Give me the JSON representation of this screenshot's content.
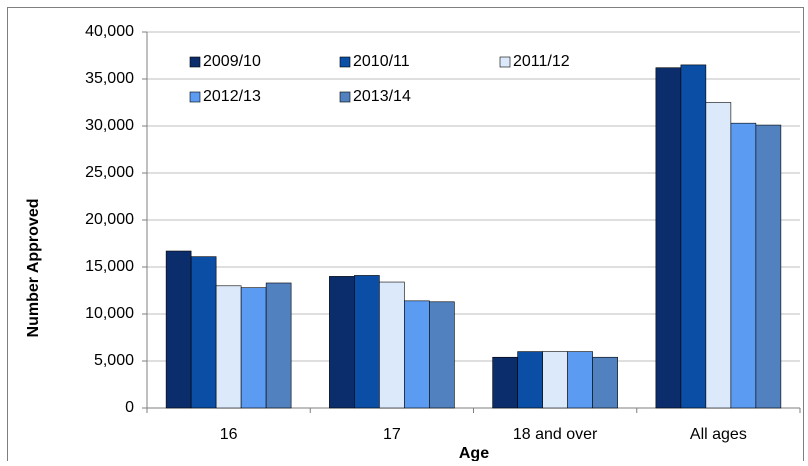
{
  "chart_data": {
    "type": "bar",
    "x_label": "Age",
    "y_label": "Number Approved",
    "categories": [
      "16",
      "17",
      "18 and over",
      "All ages"
    ],
    "series": [
      {
        "name": "2009/10",
        "color": "#0c2d6b",
        "values": [
          16700,
          14000,
          5400,
          36200
        ]
      },
      {
        "name": "2010/11",
        "color": "#0a4ea6",
        "values": [
          16100,
          14100,
          6000,
          36500
        ]
      },
      {
        "name": "2011/12",
        "color": "#dce9fb",
        "values": [
          13000,
          13400,
          6000,
          32500
        ]
      },
      {
        "name": "2012/13",
        "color": "#5b9cf2",
        "values": [
          12800,
          11400,
          6000,
          30300
        ]
      },
      {
        "name": "2013/14",
        "color": "#5181bf",
        "values": [
          13300,
          11300,
          5400,
          30100
        ]
      }
    ],
    "ylim": [
      0,
      40000
    ],
    "yticks": [
      0,
      {
        "value": 5000,
        "label": "5,000"
      },
      {
        "value": 10000,
        "label": "10,000"
      },
      {
        "value": 15000,
        "label": "15,000"
      },
      {
        "value": 20000,
        "label": "20,000"
      },
      {
        "value": 25000,
        "label": "25,000"
      },
      {
        "value": 30000,
        "label": "30,000"
      },
      {
        "value": 35000,
        "label": "35,000"
      },
      {
        "value": 40000,
        "label": "40,000"
      }
    ],
    "grid": true
  }
}
